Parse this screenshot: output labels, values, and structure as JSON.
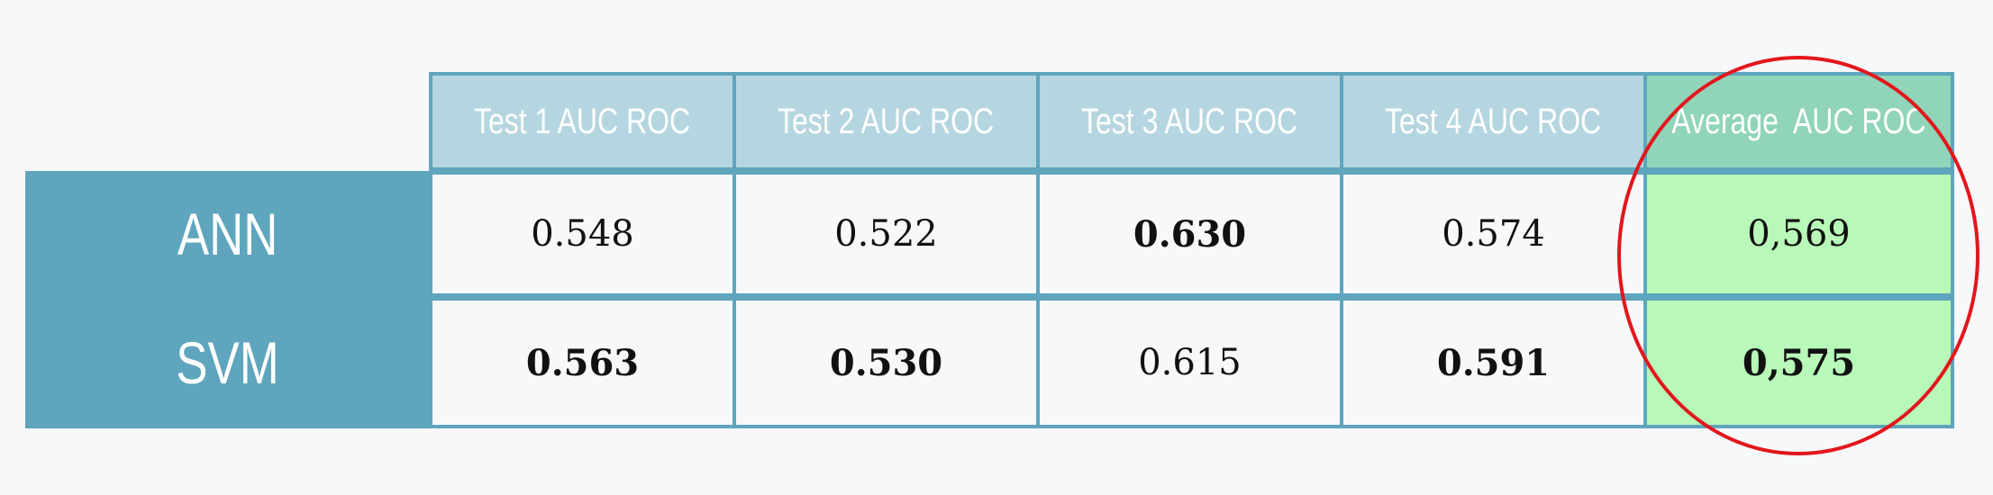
{
  "table": {
    "column_headers": [
      "Test 1 AUC ROC",
      "Test 2 AUC ROC",
      "Test 3 AUC ROC",
      "Test 4 AUC ROC",
      "Average  AUC ROC"
    ],
    "rows": [
      {
        "label": "ANN",
        "values": [
          "0.548",
          "0.522",
          "0.630",
          "0.574",
          "0,569"
        ],
        "bold": [
          false,
          false,
          true,
          false,
          false
        ]
      },
      {
        "label": "SVM",
        "values": [
          "0.563",
          "0.530",
          "0.615",
          "0.591",
          "0,575"
        ],
        "bold": [
          true,
          true,
          false,
          true,
          true
        ]
      }
    ]
  },
  "colors": {
    "row_header_bg": "#5ea5bd",
    "column_header_bg": "#b5d6e0",
    "average_header_bg": "#90d4b9",
    "average_cell_bg": "#b8f8b8",
    "grid_border": "#5ea5bd",
    "highlight_ellipse": "#e3161c"
  },
  "annotations": {
    "highlight": "red-ellipse-around-average-column"
  }
}
